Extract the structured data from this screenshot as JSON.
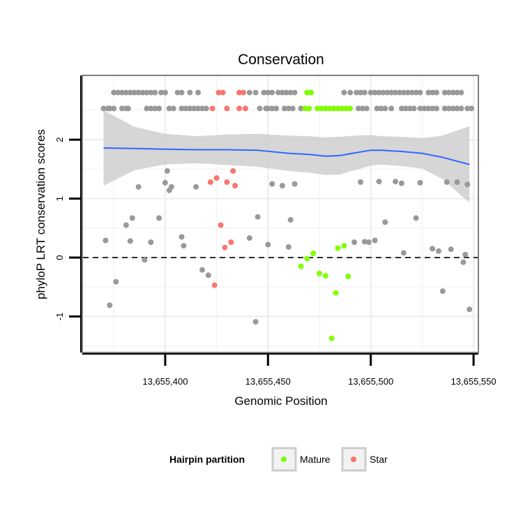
{
  "chart_data": {
    "type": "scatter",
    "title": "Conservation",
    "xlabel": "Genomic Position",
    "ylabel": "phyloP LRT conservation scores",
    "xlim": [
      13655360,
      13655552
    ],
    "ylim": [
      -1.6,
      3.08
    ],
    "x_ticks": [
      13655400,
      13655450,
      13655500,
      13655550
    ],
    "x_tick_labels": [
      "13,655,400",
      "13,655,450",
      "13,655,500",
      "13,655,550"
    ],
    "y_ticks": [
      -1,
      0,
      1,
      2
    ],
    "y_tick_labels": [
      "-1",
      "0",
      "1",
      "2"
    ],
    "reference_line": {
      "y": 0,
      "style": "dashed"
    },
    "grid": true,
    "legend": {
      "title": "Hairpin partition",
      "position": "bottom",
      "entries": [
        {
          "label": "Mature",
          "color": "#7fff00"
        },
        {
          "label": "Star",
          "color": "#f8766d"
        }
      ]
    },
    "colors": {
      "other": "#999999",
      "Mature": "#7fff00",
      "Star": "#f8766d",
      "smooth": "#3366ff",
      "band": "#cccccc"
    },
    "series": [
      {
        "group": "other",
        "points": [
          [
            13655371,
            0.29
          ],
          [
            13655373,
            -0.81
          ],
          [
            13655376,
            -0.41
          ],
          [
            13655381,
            0.55
          ],
          [
            13655383,
            0.28
          ],
          [
            13655384,
            0.67
          ],
          [
            13655387,
            1.2
          ],
          [
            13655390,
            -0.04
          ],
          [
            13655393,
            0.26
          ],
          [
            13655397,
            0.67
          ],
          [
            13655400,
            1.27
          ],
          [
            13655401,
            1.47
          ],
          [
            13655402,
            1.14
          ],
          [
            13655403,
            1.2
          ],
          [
            13655408,
            0.35
          ],
          [
            13655409,
            0.2
          ],
          [
            13655415,
            1.2
          ],
          [
            13655418,
            -0.21
          ],
          [
            13655421,
            -0.3
          ],
          [
            13655441,
            0.33
          ],
          [
            13655444,
            -1.09
          ],
          [
            13655445,
            0.69
          ],
          [
            13655450,
            0.22
          ],
          [
            13655452,
            1.25
          ],
          [
            13655457,
            1.22
          ],
          [
            13655460,
            0.18
          ],
          [
            13655461,
            0.64
          ],
          [
            13655463,
            1.25
          ],
          [
            13655492,
            0.26
          ],
          [
            13655495,
            1.28
          ],
          [
            13655497,
            0.27
          ],
          [
            13655499,
            0.26
          ],
          [
            13655502,
            0.29
          ],
          [
            13655504,
            1.29
          ],
          [
            13655507,
            0.6
          ],
          [
            13655512,
            1.29
          ],
          [
            13655515,
            1.26
          ],
          [
            13655516,
            0.08
          ],
          [
            13655522,
            0.67
          ],
          [
            13655524,
            1.27
          ],
          [
            13655530,
            0.15
          ],
          [
            13655533,
            0.11
          ],
          [
            13655535,
            -0.57
          ],
          [
            13655537,
            1.28
          ],
          [
            13655539,
            0.14
          ],
          [
            13655542,
            1.28
          ],
          [
            13655545,
            -0.08
          ],
          [
            13655546,
            0.05
          ],
          [
            13655547,
            1.24
          ],
          [
            13655548,
            -0.88
          ]
        ]
      },
      {
        "group": "Star",
        "points": [
          [
            13655422,
            1.28
          ],
          [
            13655424,
            -0.47
          ],
          [
            13655425,
            1.35
          ],
          [
            13655427,
            0.55
          ],
          [
            13655429,
            0.17
          ],
          [
            13655430,
            1.28
          ],
          [
            13655432,
            0.26
          ],
          [
            13655433,
            1.47
          ],
          [
            13655434,
            1.22
          ]
        ]
      },
      {
        "group": "Mature",
        "points": [
          [
            13655466,
            -0.15
          ],
          [
            13655469,
            -0.02
          ],
          [
            13655472,
            0.07
          ],
          [
            13655475,
            -0.27
          ],
          [
            13655478,
            -0.31
          ],
          [
            13655481,
            -1.37
          ],
          [
            13655483,
            -0.6
          ],
          [
            13655484,
            0.16
          ],
          [
            13655487,
            0.2
          ],
          [
            13655489,
            -0.32
          ]
        ]
      }
    ],
    "top_rows": [
      {
        "y": 2.53,
        "points": [
          {
            "x": 13655370,
            "g": "other"
          },
          {
            "x": 13655372,
            "g": "other"
          },
          {
            "x": 13655373,
            "g": "other"
          },
          {
            "x": 13655375,
            "g": "other"
          },
          {
            "x": 13655379,
            "g": "other"
          },
          {
            "x": 13655381,
            "g": "other"
          },
          {
            "x": 13655382,
            "g": "other"
          },
          {
            "x": 13655391,
            "g": "other"
          },
          {
            "x": 13655393,
            "g": "other"
          },
          {
            "x": 13655395,
            "g": "other"
          },
          {
            "x": 13655397,
            "g": "other"
          },
          {
            "x": 13655402,
            "g": "other"
          },
          {
            "x": 13655404,
            "g": "other"
          },
          {
            "x": 13655408,
            "g": "other"
          },
          {
            "x": 13655410,
            "g": "other"
          },
          {
            "x": 13655412,
            "g": "other"
          },
          {
            "x": 13655414,
            "g": "other"
          },
          {
            "x": 13655416,
            "g": "other"
          },
          {
            "x": 13655418,
            "g": "other"
          },
          {
            "x": 13655420,
            "g": "other"
          },
          {
            "x": 13655423,
            "g": "Star"
          },
          {
            "x": 13655430,
            "g": "Star"
          },
          {
            "x": 13655436,
            "g": "Star"
          },
          {
            "x": 13655439,
            "g": "Star"
          },
          {
            "x": 13655446,
            "g": "other"
          },
          {
            "x": 13655449,
            "g": "other"
          },
          {
            "x": 13655450,
            "g": "other"
          },
          {
            "x": 13655452,
            "g": "other"
          },
          {
            "x": 13655454,
            "g": "other"
          },
          {
            "x": 13655458,
            "g": "other"
          },
          {
            "x": 13655460,
            "g": "other"
          },
          {
            "x": 13655462,
            "g": "other"
          },
          {
            "x": 13655466,
            "g": "other"
          },
          {
            "x": 13655468,
            "g": "Mature"
          },
          {
            "x": 13655470,
            "g": "Mature"
          },
          {
            "x": 13655474,
            "g": "Mature"
          },
          {
            "x": 13655476,
            "g": "Mature"
          },
          {
            "x": 13655478,
            "g": "Mature"
          },
          {
            "x": 13655480,
            "g": "Mature"
          },
          {
            "x": 13655482,
            "g": "Mature"
          },
          {
            "x": 13655484,
            "g": "Mature"
          },
          {
            "x": 13655486,
            "g": "Mature"
          },
          {
            "x": 13655488,
            "g": "Mature"
          },
          {
            "x": 13655490,
            "g": "Mature"
          },
          {
            "x": 13655494,
            "g": "other"
          },
          {
            "x": 13655496,
            "g": "other"
          },
          {
            "x": 13655498,
            "g": "other"
          },
          {
            "x": 13655503,
            "g": "other"
          },
          {
            "x": 13655505,
            "g": "other"
          },
          {
            "x": 13655507,
            "g": "other"
          },
          {
            "x": 13655510,
            "g": "other"
          },
          {
            "x": 13655515,
            "g": "other"
          },
          {
            "x": 13655517,
            "g": "other"
          },
          {
            "x": 13655519,
            "g": "other"
          },
          {
            "x": 13655521,
            "g": "other"
          },
          {
            "x": 13655524,
            "g": "other"
          },
          {
            "x": 13655526,
            "g": "other"
          },
          {
            "x": 13655528,
            "g": "other"
          },
          {
            "x": 13655530,
            "g": "other"
          },
          {
            "x": 13655532,
            "g": "other"
          },
          {
            "x": 13655536,
            "g": "other"
          },
          {
            "x": 13655538,
            "g": "other"
          },
          {
            "x": 13655540,
            "g": "other"
          },
          {
            "x": 13655542,
            "g": "other"
          },
          {
            "x": 13655544,
            "g": "other"
          },
          {
            "x": 13655547,
            "g": "other"
          },
          {
            "x": 13655549,
            "g": "other"
          }
        ]
      },
      {
        "y": 2.8,
        "points": [
          {
            "x": 13655375,
            "g": "other"
          },
          {
            "x": 13655377,
            "g": "other"
          },
          {
            "x": 13655379,
            "g": "other"
          },
          {
            "x": 13655381,
            "g": "other"
          },
          {
            "x": 13655383,
            "g": "other"
          },
          {
            "x": 13655385,
            "g": "other"
          },
          {
            "x": 13655387,
            "g": "other"
          },
          {
            "x": 13655389,
            "g": "other"
          },
          {
            "x": 13655391,
            "g": "other"
          },
          {
            "x": 13655393,
            "g": "other"
          },
          {
            "x": 13655395,
            "g": "other"
          },
          {
            "x": 13655398,
            "g": "other"
          },
          {
            "x": 13655400,
            "g": "other"
          },
          {
            "x": 13655406,
            "g": "other"
          },
          {
            "x": 13655408,
            "g": "other"
          },
          {
            "x": 13655412,
            "g": "other"
          },
          {
            "x": 13655416,
            "g": "other"
          },
          {
            "x": 13655426,
            "g": "Star"
          },
          {
            "x": 13655428,
            "g": "Star"
          },
          {
            "x": 13655436,
            "g": "Star"
          },
          {
            "x": 13655438,
            "g": "Star"
          },
          {
            "x": 13655441,
            "g": "other"
          },
          {
            "x": 13655444,
            "g": "other"
          },
          {
            "x": 13655448,
            "g": "other"
          },
          {
            "x": 13655450,
            "g": "other"
          },
          {
            "x": 13655452,
            "g": "other"
          },
          {
            "x": 13655455,
            "g": "other"
          },
          {
            "x": 13655457,
            "g": "other"
          },
          {
            "x": 13655459,
            "g": "other"
          },
          {
            "x": 13655461,
            "g": "other"
          },
          {
            "x": 13655463,
            "g": "other"
          },
          {
            "x": 13655469,
            "g": "Mature"
          },
          {
            "x": 13655471,
            "g": "Mature"
          },
          {
            "x": 13655487,
            "g": "other"
          },
          {
            "x": 13655490,
            "g": "other"
          },
          {
            "x": 13655493,
            "g": "other"
          },
          {
            "x": 13655495,
            "g": "other"
          },
          {
            "x": 13655497,
            "g": "other"
          },
          {
            "x": 13655500,
            "g": "other"
          },
          {
            "x": 13655502,
            "g": "other"
          },
          {
            "x": 13655504,
            "g": "other"
          },
          {
            "x": 13655506,
            "g": "other"
          },
          {
            "x": 13655508,
            "g": "other"
          },
          {
            "x": 13655510,
            "g": "other"
          },
          {
            "x": 13655512,
            "g": "other"
          },
          {
            "x": 13655514,
            "g": "other"
          },
          {
            "x": 13655516,
            "g": "other"
          },
          {
            "x": 13655518,
            "g": "other"
          },
          {
            "x": 13655520,
            "g": "other"
          },
          {
            "x": 13655522,
            "g": "other"
          },
          {
            "x": 13655524,
            "g": "other"
          },
          {
            "x": 13655528,
            "g": "other"
          },
          {
            "x": 13655530,
            "g": "other"
          },
          {
            "x": 13655532,
            "g": "other"
          },
          {
            "x": 13655536,
            "g": "other"
          },
          {
            "x": 13655538,
            "g": "other"
          },
          {
            "x": 13655540,
            "g": "other"
          },
          {
            "x": 13655542,
            "g": "other"
          },
          {
            "x": 13655544,
            "g": "other"
          }
        ]
      }
    ],
    "smooth": {
      "x": [
        13655370,
        13655385,
        13655400,
        13655415,
        13655430,
        13655445,
        13655460,
        13655470,
        13655478,
        13655485,
        13655493,
        13655500,
        13655505,
        13655515,
        13655525,
        13655535,
        13655548
      ],
      "y": [
        1.86,
        1.85,
        1.84,
        1.83,
        1.83,
        1.82,
        1.77,
        1.75,
        1.72,
        1.73,
        1.78,
        1.82,
        1.82,
        1.8,
        1.77,
        1.7,
        1.58
      ],
      "lower": [
        1.22,
        1.48,
        1.58,
        1.6,
        1.57,
        1.54,
        1.47,
        1.44,
        1.4,
        1.41,
        1.49,
        1.56,
        1.58,
        1.55,
        1.51,
        1.33,
        0.93
      ],
      "upper": [
        2.5,
        2.22,
        2.1,
        2.06,
        2.09,
        2.1,
        2.07,
        2.06,
        2.04,
        2.05,
        2.07,
        2.08,
        2.06,
        2.05,
        2.03,
        2.07,
        2.23
      ]
    }
  }
}
